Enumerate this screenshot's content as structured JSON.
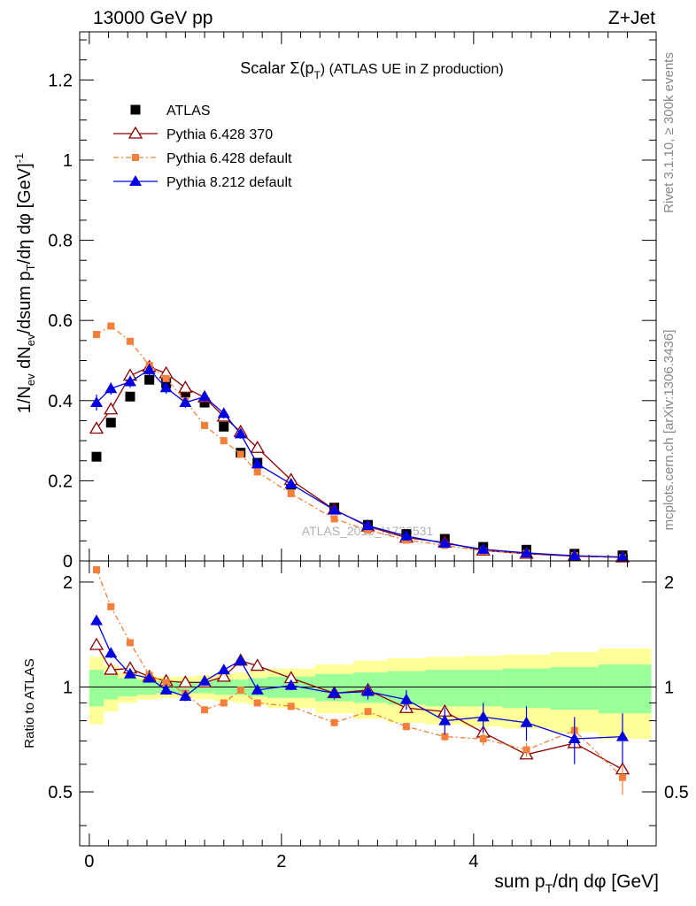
{
  "header": {
    "left": "13000 GeV pp",
    "right": "Z+Jet"
  },
  "side_labels": {
    "rivet": "Rivet 3.1.10, ≥ 300k events",
    "mcplots": "mcplots.cern.ch [arXiv:1306.3436]"
  },
  "watermark": "ATLAS_2019_I1736531",
  "chart_data": {
    "type": "scatter",
    "title": "Scalar Σ(p_T) (ATLAS UE in Z production)",
    "title_main": "Scalar Σ(p",
    "title_sub": "T",
    "title_rest": ") (ATLAS UE in Z production)",
    "xlabel": "sum p_T/dη dφ [GeV]",
    "xlabel_a": "sum p",
    "xlabel_sub": "T",
    "xlabel_b": "/dη dφ [GeV]",
    "ylabel": "1/N_ev dN_ev/dsum p_T/dη dφ [GeV]^-1",
    "ylabel_parts": [
      "1/N",
      "ev",
      " dN",
      "ev",
      "/dsum p",
      "T",
      "/dη dφ  [GeV]",
      "-1"
    ],
    "ratio_ylabel": "Ratio to ATLAS",
    "xlim": [
      -0.1,
      5.9
    ],
    "ylim": [
      0,
      1.32
    ],
    "ratio_ylim": [
      0.35,
      2.3
    ],
    "x_ticks": [
      "0",
      "2",
      "4"
    ],
    "y_ticks": [
      "0",
      "0.2",
      "0.4",
      "0.6",
      "0.8",
      "1",
      "1.2"
    ],
    "ratio_ticks": [
      "0.5",
      "1",
      "2"
    ],
    "legend_position": "top-left",
    "x": [
      0.075,
      0.225,
      0.425,
      0.625,
      0.8,
      1.0,
      1.2,
      1.4,
      1.575,
      1.75,
      2.1,
      2.55,
      2.9,
      3.3,
      3.7,
      4.1,
      4.55,
      5.05,
      5.55
    ],
    "series": [
      {
        "name": "ATLAS",
        "color": "#000000",
        "values": [
          0.26,
          0.345,
          0.41,
          0.452,
          0.443,
          0.42,
          0.395,
          0.335,
          0.27,
          0.245,
          0.19,
          0.133,
          0.09,
          0.067,
          0.055,
          0.035,
          0.028,
          0.018,
          0.014
        ]
      },
      {
        "name": "Pythia 6.428 370",
        "color": "#8b0000",
        "values": [
          0.33,
          0.378,
          0.462,
          0.484,
          0.468,
          0.432,
          0.408,
          0.36,
          0.322,
          0.282,
          0.202,
          0.128,
          0.086,
          0.058,
          0.046,
          0.026,
          0.018,
          0.012,
          0.009
        ],
        "ratio": [
          1.32,
          1.12,
          1.13,
          1.07,
          1.04,
          1.03,
          1.03,
          1.07,
          1.19,
          1.15,
          1.06,
          0.96,
          0.98,
          0.87,
          0.85,
          0.74,
          0.64,
          0.69,
          0.58
        ]
      },
      {
        "name": "Pythia 6.428 default",
        "color": "#f47f3a",
        "values": [
          0.565,
          0.586,
          0.548,
          0.488,
          0.455,
          0.4,
          0.338,
          0.3,
          0.266,
          0.222,
          0.168,
          0.105,
          0.077,
          0.052,
          0.039,
          0.025,
          0.019,
          0.013,
          0.008
        ],
        "ratio": [
          2.17,
          1.7,
          1.34,
          1.08,
          1.03,
          0.96,
          0.86,
          0.9,
          0.98,
          0.9,
          0.88,
          0.79,
          0.85,
          0.77,
          0.72,
          0.71,
          0.66,
          0.75,
          0.55
        ],
        "ratio_err": [
          0.02,
          0.02,
          0.02,
          0.02,
          0.02,
          0.02,
          0.02,
          0.02,
          0.02,
          0.02,
          0.02,
          0.02,
          0.02,
          0.02,
          0.02,
          0.03,
          0.03,
          0.05,
          0.06
        ]
      },
      {
        "name": "Pythia 8.212 default",
        "color": "#0000e0",
        "values": [
          0.395,
          0.43,
          0.447,
          0.477,
          0.432,
          0.395,
          0.41,
          0.368,
          0.317,
          0.242,
          0.192,
          0.127,
          0.088,
          0.062,
          0.044,
          0.029,
          0.02,
          0.013,
          0.01
        ],
        "errors": [
          0.02,
          0.015,
          0.015,
          0.015,
          0.015,
          0.013,
          0.013,
          0.013,
          0.012,
          0.01,
          0.01,
          0.008,
          0.006,
          0.005,
          0.004,
          0.003,
          0.003,
          0.002,
          0.002
        ],
        "ratio": [
          1.55,
          1.25,
          1.09,
          1.06,
          0.98,
          0.94,
          1.04,
          1.12,
          1.19,
          0.98,
          1.01,
          0.96,
          0.97,
          0.92,
          0.8,
          0.82,
          0.79,
          0.71,
          0.72
        ],
        "ratio_err": [
          0.05,
          0.04,
          0.03,
          0.03,
          0.03,
          0.03,
          0.03,
          0.03,
          0.04,
          0.03,
          0.03,
          0.04,
          0.05,
          0.06,
          0.07,
          0.08,
          0.09,
          0.11,
          0.12
        ]
      }
    ],
    "bands": {
      "bins": [
        0.0,
        0.15,
        0.3,
        0.5,
        0.7,
        0.9,
        1.1,
        1.3,
        1.5,
        1.65,
        1.85,
        2.35,
        2.75,
        3.1,
        3.5,
        3.9,
        4.3,
        4.8,
        5.3,
        5.85
      ],
      "green": [
        0.12,
        0.08,
        0.06,
        0.05,
        0.04,
        0.04,
        0.04,
        0.05,
        0.05,
        0.06,
        0.07,
        0.09,
        0.1,
        0.11,
        0.12,
        0.12,
        0.13,
        0.14,
        0.16
      ],
      "yellow": [
        0.22,
        0.15,
        0.1,
        0.08,
        0.07,
        0.07,
        0.08,
        0.09,
        0.1,
        0.11,
        0.13,
        0.16,
        0.19,
        0.21,
        0.22,
        0.23,
        0.24,
        0.26,
        0.29
      ]
    }
  }
}
